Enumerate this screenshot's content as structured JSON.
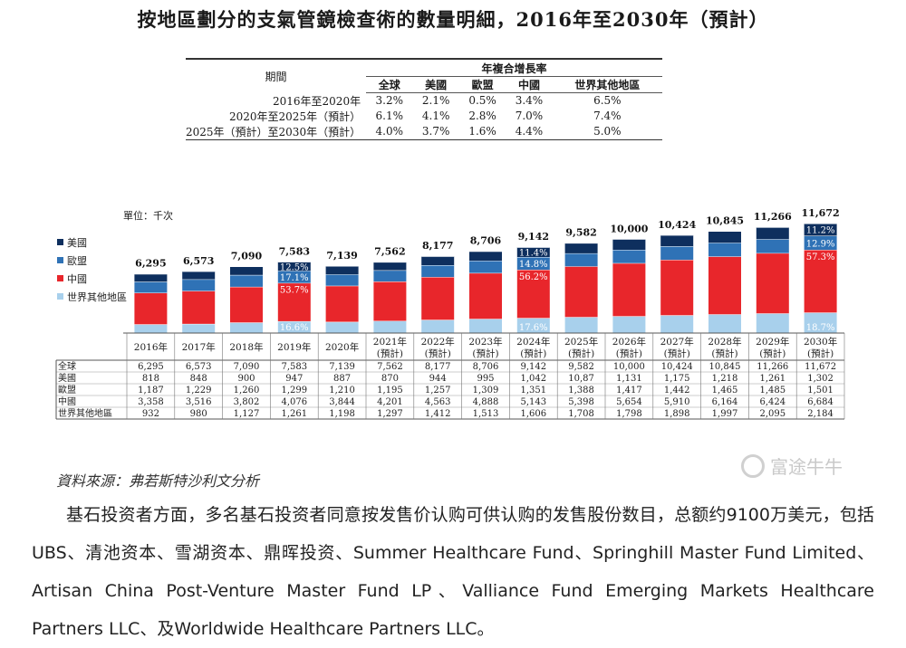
{
  "title": "按地區劃分的支氣管鏡檢查術的數量明細，2016年至2030年（預計）",
  "cagr_table": {
    "period_header": "期間",
    "group_header": "年複合增長率",
    "columns": [
      "全球",
      "美國",
      "歐盟",
      "中國",
      "世界其他地區"
    ],
    "rows": [
      {
        "period": "2016年至2020年",
        "values": [
          "3.2%",
          "2.1%",
          "0.5%",
          "3.4%",
          "6.5%"
        ]
      },
      {
        "period": "2020年至2025年（預計）",
        "values": [
          "6.1%",
          "4.1%",
          "2.8%",
          "7.0%",
          "7.4%"
        ]
      },
      {
        "period": "2025年（預計）至2030年（預計）",
        "values": [
          "4.0%",
          "3.7%",
          "1.6%",
          "4.4%",
          "5.0%"
        ]
      }
    ]
  },
  "chart_data": {
    "type": "bar",
    "stacked": true,
    "unit_label": "單位：千次",
    "categories": [
      "2016年",
      "2017年",
      "2018年",
      "2019年",
      "2020年",
      "2021年\n(預計)",
      "2022年\n(預計)",
      "2023年\n(預計)",
      "2024年\n(預計)",
      "2025年\n(預計)",
      "2026年\n(預計)",
      "2027年\n(預計)",
      "2028年\n(預計)",
      "2029年\n(預計)",
      "2030年\n(預計)"
    ],
    "totals": [
      "6,295",
      "6,573",
      "7,090",
      "7,583",
      "7,139",
      "7,562",
      "8,177",
      "8,706",
      "9,142",
      "9,582",
      "10,000",
      "10,424",
      "10,845",
      "11,266",
      "11,672"
    ],
    "total_values": [
      6295,
      6573,
      7090,
      7583,
      7139,
      7562,
      8177,
      8706,
      9142,
      9582,
      10000,
      10424,
      10845,
      11266,
      11672
    ],
    "series": [
      {
        "name": "世界其他地區",
        "color": "#a8d0ec",
        "values": [
          932,
          980,
          1127,
          1261,
          1198,
          1297,
          1412,
          1513,
          1606,
          1708,
          1798,
          1898,
          1997,
          2095,
          2184
        ]
      },
      {
        "name": "中國",
        "color": "#e8262b",
        "values": [
          3358,
          3516,
          3802,
          4076,
          3844,
          4201,
          4563,
          4888,
          5143,
          5398,
          5654,
          5910,
          6164,
          6424,
          6684
        ]
      },
      {
        "name": "歐盟",
        "color": "#2f72b6",
        "values": [
          1187,
          1229,
          1260,
          1299,
          1210,
          1195,
          1257,
          1309,
          1351,
          1388,
          1417,
          1442,
          1465,
          1485,
          1501
        ]
      },
      {
        "name": "美國",
        "color": "#0e2f5e",
        "values": [
          818,
          848,
          900,
          947,
          887,
          870,
          944,
          995,
          1042,
          1087,
          1131,
          1175,
          1218,
          1261,
          1302
        ]
      }
    ],
    "legend": [
      "美國",
      "歐盟",
      "中國",
      "世界其他地區"
    ],
    "legend_placement": "left",
    "share_labels": [
      {
        "category": "2019年",
        "us": "12.5%",
        "eu": "17.1%",
        "cn": "53.7%",
        "row": "16.6%"
      },
      {
        "category": "2024年\n(預計)",
        "us": "11.4%",
        "eu": "14.8%",
        "cn": "56.2%",
        "row": "17.6%"
      },
      {
        "category": "2030年\n(預計)",
        "us": "11.2%",
        "eu": "12.9%",
        "cn": "57.3%",
        "row": "18.7%"
      }
    ],
    "data_table": {
      "row_labels": [
        "全球",
        "美國",
        "歐盟",
        "中國",
        "世界其他地區"
      ],
      "rows": [
        [
          "6,295",
          "6,573",
          "7,090",
          "7,583",
          "7,139",
          "7,562",
          "8,177",
          "8,706",
          "9,142",
          "9,582",
          "10,000",
          "10,424",
          "10,845",
          "11,266",
          "11,672"
        ],
        [
          "818",
          "848",
          "900",
          "947",
          "887",
          "870",
          "944",
          "995",
          "1,042",
          "10,87",
          "1,131",
          "1,175",
          "1,218",
          "1,261",
          "1,302"
        ],
        [
          "1,187",
          "1,229",
          "1,260",
          "1,299",
          "1,210",
          "1,195",
          "1,257",
          "1,309",
          "1,351",
          "1,388",
          "1,417",
          "1,442",
          "1,465",
          "1,485",
          "1,501"
        ],
        [
          "3,358",
          "3,516",
          "3,802",
          "4,076",
          "3,844",
          "4,201",
          "4,563",
          "4,888",
          "5,143",
          "5,398",
          "5,654",
          "5,910",
          "6,164",
          "6,424",
          "6,684"
        ],
        [
          "932",
          "980",
          "1,127",
          "1,261",
          "1,198",
          "1,297",
          "1,412",
          "1,513",
          "1,606",
          "1,708",
          "1,798",
          "1,898",
          "1,997",
          "2,095",
          "2,184"
        ]
      ]
    },
    "colors": {
      "us": "#0e2f5e",
      "eu": "#2f72b6",
      "cn": "#e8262b",
      "row": "#a8d0ec"
    }
  },
  "source": "資料來源：弗若斯特沙利文分析",
  "watermark": "富途牛牛",
  "paragraph": "基石投资者方面，多名基石投资者同意按发售价认购可供认购的发售股份数目，总额约9100万美元，包括UBS、清池资本、雪湖资本、鼎晖投资、Summer Healthcare Fund、Springhill Master Fund Limited、Artisan China Post-Venture Master Fund LP、Valliance Fund Emerging Markets Healthcare Partners LLC、及Worldwide Healthcare Partners LLC。"
}
